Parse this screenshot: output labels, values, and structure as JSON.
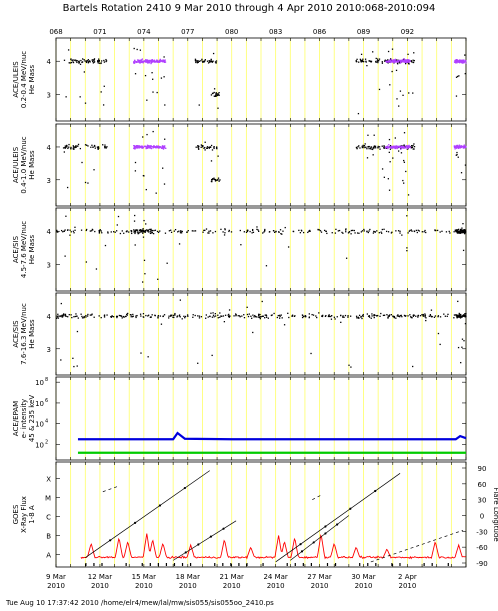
{
  "header": {
    "title": "Bartels Rotation 2410    9 Mar 2010 through 4 Apr 2010    2010:068-2010:094",
    "doy_ticks": [
      "068",
      "071",
      "074",
      "077",
      "080",
      "083",
      "086",
      "089",
      "092"
    ]
  },
  "footer": "Tue Aug 10 17:37:42 2010    /home/elr4/mew/lal/mw/sis055/sis055oo_2410.ps",
  "date_ticks": [
    {
      "label": "9 Mar",
      "year": "2010"
    },
    {
      "label": "12 Mar",
      "year": "2010"
    },
    {
      "label": "15 Mar",
      "year": "2010"
    },
    {
      "label": "18 Mar",
      "year": "2010"
    },
    {
      "label": "21 Mar",
      "year": "2010"
    },
    {
      "label": "24 Mar",
      "year": "2010"
    },
    {
      "label": "27 Mar",
      "year": "2010"
    },
    {
      "label": "30 Mar",
      "year": "2010"
    },
    {
      "label": "2 Apr",
      "year": "2010"
    }
  ],
  "colors": {
    "grid": "#ffff66",
    "points": "#000000",
    "dense": "#b040ff",
    "epam_high": "#0000dd",
    "epam_low": "#00cc00",
    "xray": "#ff0000"
  },
  "chart_data": [
    {
      "type": "scatter",
      "panel": "uleis-1",
      "ylabel": [
        "ACE/ULEIS",
        "0.2-0.4 MeV/nuc",
        "He Mass"
      ],
      "yticks": [
        "4",
        "3"
      ],
      "xlim": [
        68,
        96
      ],
      "ylim": [
        2.2,
        4.7
      ],
      "clusters": [
        {
          "x0": 68.5,
          "x1": 71.5,
          "y": 4.0,
          "dense": false,
          "n": 70
        },
        {
          "x0": 73.3,
          "x1": 75.5,
          "y": 4.0,
          "dense": true,
          "n": 180
        },
        {
          "x0": 77.5,
          "x1": 79.0,
          "y": 4.0,
          "dense": false,
          "n": 40
        },
        {
          "x0": 78.6,
          "x1": 79.2,
          "y": 3.0,
          "dense": false,
          "n": 20
        },
        {
          "x0": 88.5,
          "x1": 92.5,
          "y": 4.0,
          "dense": false,
          "n": 110
        },
        {
          "x0": 90.5,
          "x1": 92.2,
          "y": 4.0,
          "dense": true,
          "n": 130
        },
        {
          "x0": 95.2,
          "x1": 96.0,
          "y": 4.0,
          "dense": true,
          "n": 90
        }
      ]
    },
    {
      "type": "scatter",
      "panel": "uleis-2",
      "ylabel": [
        "ACE/ULEIS",
        "0.4-1.0 MeV/nuc",
        "He Mass"
      ],
      "yticks": [
        "4",
        "3"
      ],
      "xlim": [
        68,
        96
      ],
      "ylim": [
        2.2,
        4.7
      ],
      "clusters": [
        {
          "x0": 68.5,
          "x1": 71.5,
          "y": 4.0,
          "dense": false,
          "n": 60
        },
        {
          "x0": 73.3,
          "x1": 75.5,
          "y": 4.0,
          "dense": true,
          "n": 170
        },
        {
          "x0": 77.5,
          "x1": 79.0,
          "y": 4.0,
          "dense": false,
          "n": 35
        },
        {
          "x0": 78.6,
          "x1": 79.2,
          "y": 3.0,
          "dense": false,
          "n": 20
        },
        {
          "x0": 88.5,
          "x1": 92.5,
          "y": 4.0,
          "dense": false,
          "n": 100
        },
        {
          "x0": 90.5,
          "x1": 92.2,
          "y": 4.0,
          "dense": true,
          "n": 120
        },
        {
          "x0": 95.2,
          "x1": 96.0,
          "y": 4.0,
          "dense": true,
          "n": 90
        }
      ]
    },
    {
      "type": "scatter",
      "panel": "sis-1",
      "ylabel": [
        "ACE/SIS",
        "4.5-7.6 MeV/nuc",
        "He Mass"
      ],
      "yticks": [
        "4",
        "3"
      ],
      "xlim": [
        68,
        96
      ],
      "ylim": [
        2.2,
        4.7
      ],
      "clusters": [
        {
          "x0": 68.0,
          "x1": 96.0,
          "y": 4.0,
          "dense": false,
          "n": 260
        },
        {
          "x0": 73.3,
          "x1": 74.6,
          "y": 4.0,
          "dense": false,
          "n": 60
        },
        {
          "x0": 95.3,
          "x1": 96.0,
          "y": 4.0,
          "dense": false,
          "n": 90
        }
      ]
    },
    {
      "type": "scatter",
      "panel": "sis-2",
      "ylabel": [
        "ACE/SIS",
        "7.6-16.3 MeV/nuc",
        "He Mass"
      ],
      "yticks": [
        "4",
        "3"
      ],
      "xlim": [
        68,
        96
      ],
      "ylim": [
        2.2,
        4.7
      ],
      "clusters": [
        {
          "x0": 68.0,
          "x1": 96.0,
          "y": 4.0,
          "dense": false,
          "n": 380
        },
        {
          "x0": 95.3,
          "x1": 96.0,
          "y": 4.0,
          "dense": false,
          "n": 50
        }
      ]
    },
    {
      "type": "line",
      "panel": "epam",
      "ylabel": [
        "ACE/EPAM",
        "e- intensity",
        "45 & 235 keV"
      ],
      "yticks": [
        "10^8",
        "10^6",
        "10^4",
        "10^2"
      ],
      "ylim": [
        0.5,
        8.5
      ],
      "log": true,
      "series": [
        {
          "values_x": [
            69.5,
            76.0,
            76.3,
            76.8,
            80,
            85,
            90,
            95.3,
            95.6,
            96.0
          ],
          "values_y": [
            2.5,
            2.5,
            3.1,
            2.55,
            2.5,
            2.5,
            2.5,
            2.5,
            2.8,
            2.6
          ]
        },
        {
          "values_x": [
            69.5,
            96.0
          ],
          "values_y": [
            1.2,
            1.2
          ]
        }
      ]
    },
    {
      "type": "line",
      "panel": "goes",
      "ylabel": [
        "GOES",
        "X-Ray Flux",
        "1-8 A"
      ],
      "yticks": [
        "X",
        "M",
        "C",
        "B",
        "A"
      ],
      "y2label": "Flare Longitude",
      "y2ticks": [
        "90",
        "60",
        "30",
        "0",
        "-30",
        "-60",
        "-90"
      ],
      "ylim": [
        0,
        5
      ],
      "y2lim": [
        -90,
        90
      ],
      "xray_baseline": 0.35,
      "xray_spikes": [
        {
          "x": 70.4,
          "y": 1.1
        },
        {
          "x": 72.3,
          "y": 1.4
        },
        {
          "x": 72.9,
          "y": 1.2
        },
        {
          "x": 74.2,
          "y": 1.6
        },
        {
          "x": 74.6,
          "y": 1.3
        },
        {
          "x": 75.3,
          "y": 1.1
        },
        {
          "x": 77.2,
          "y": 1.0
        },
        {
          "x": 79.5,
          "y": 1.3
        },
        {
          "x": 81.3,
          "y": 0.9
        },
        {
          "x": 83.2,
          "y": 1.5
        },
        {
          "x": 83.6,
          "y": 1.2
        },
        {
          "x": 84.3,
          "y": 1.4
        },
        {
          "x": 86.1,
          "y": 1.6
        },
        {
          "x": 87.0,
          "y": 1.1
        },
        {
          "x": 88.5,
          "y": 0.9
        },
        {
          "x": 90.6,
          "y": 0.8
        },
        {
          "x": 93.9,
          "y": 1.2
        },
        {
          "x": 95.5,
          "y": 1.0
        }
      ],
      "tracks": [
        {
          "x0": 70.0,
          "y0": -80,
          "x1": 78.5,
          "y1": 85,
          "dashed": false
        },
        {
          "x0": 71.2,
          "y0": 45,
          "x1": 72.2,
          "y1": 55,
          "dashed": true
        },
        {
          "x0": 76.0,
          "y0": -85,
          "x1": 80.3,
          "y1": -10,
          "dashed": false
        },
        {
          "x0": 83.0,
          "y0": -88,
          "x1": 91.5,
          "y1": 80,
          "dashed": false
        },
        {
          "x0": 84.0,
          "y0": -85,
          "x1": 88.0,
          "y1": 0,
          "dashed": false
        },
        {
          "x0": 85.5,
          "y0": 30,
          "x1": 86.2,
          "y1": 40,
          "dashed": true
        },
        {
          "x0": 89.5,
          "y0": -88,
          "x1": 95.8,
          "y1": -28,
          "dashed": true
        }
      ]
    }
  ]
}
